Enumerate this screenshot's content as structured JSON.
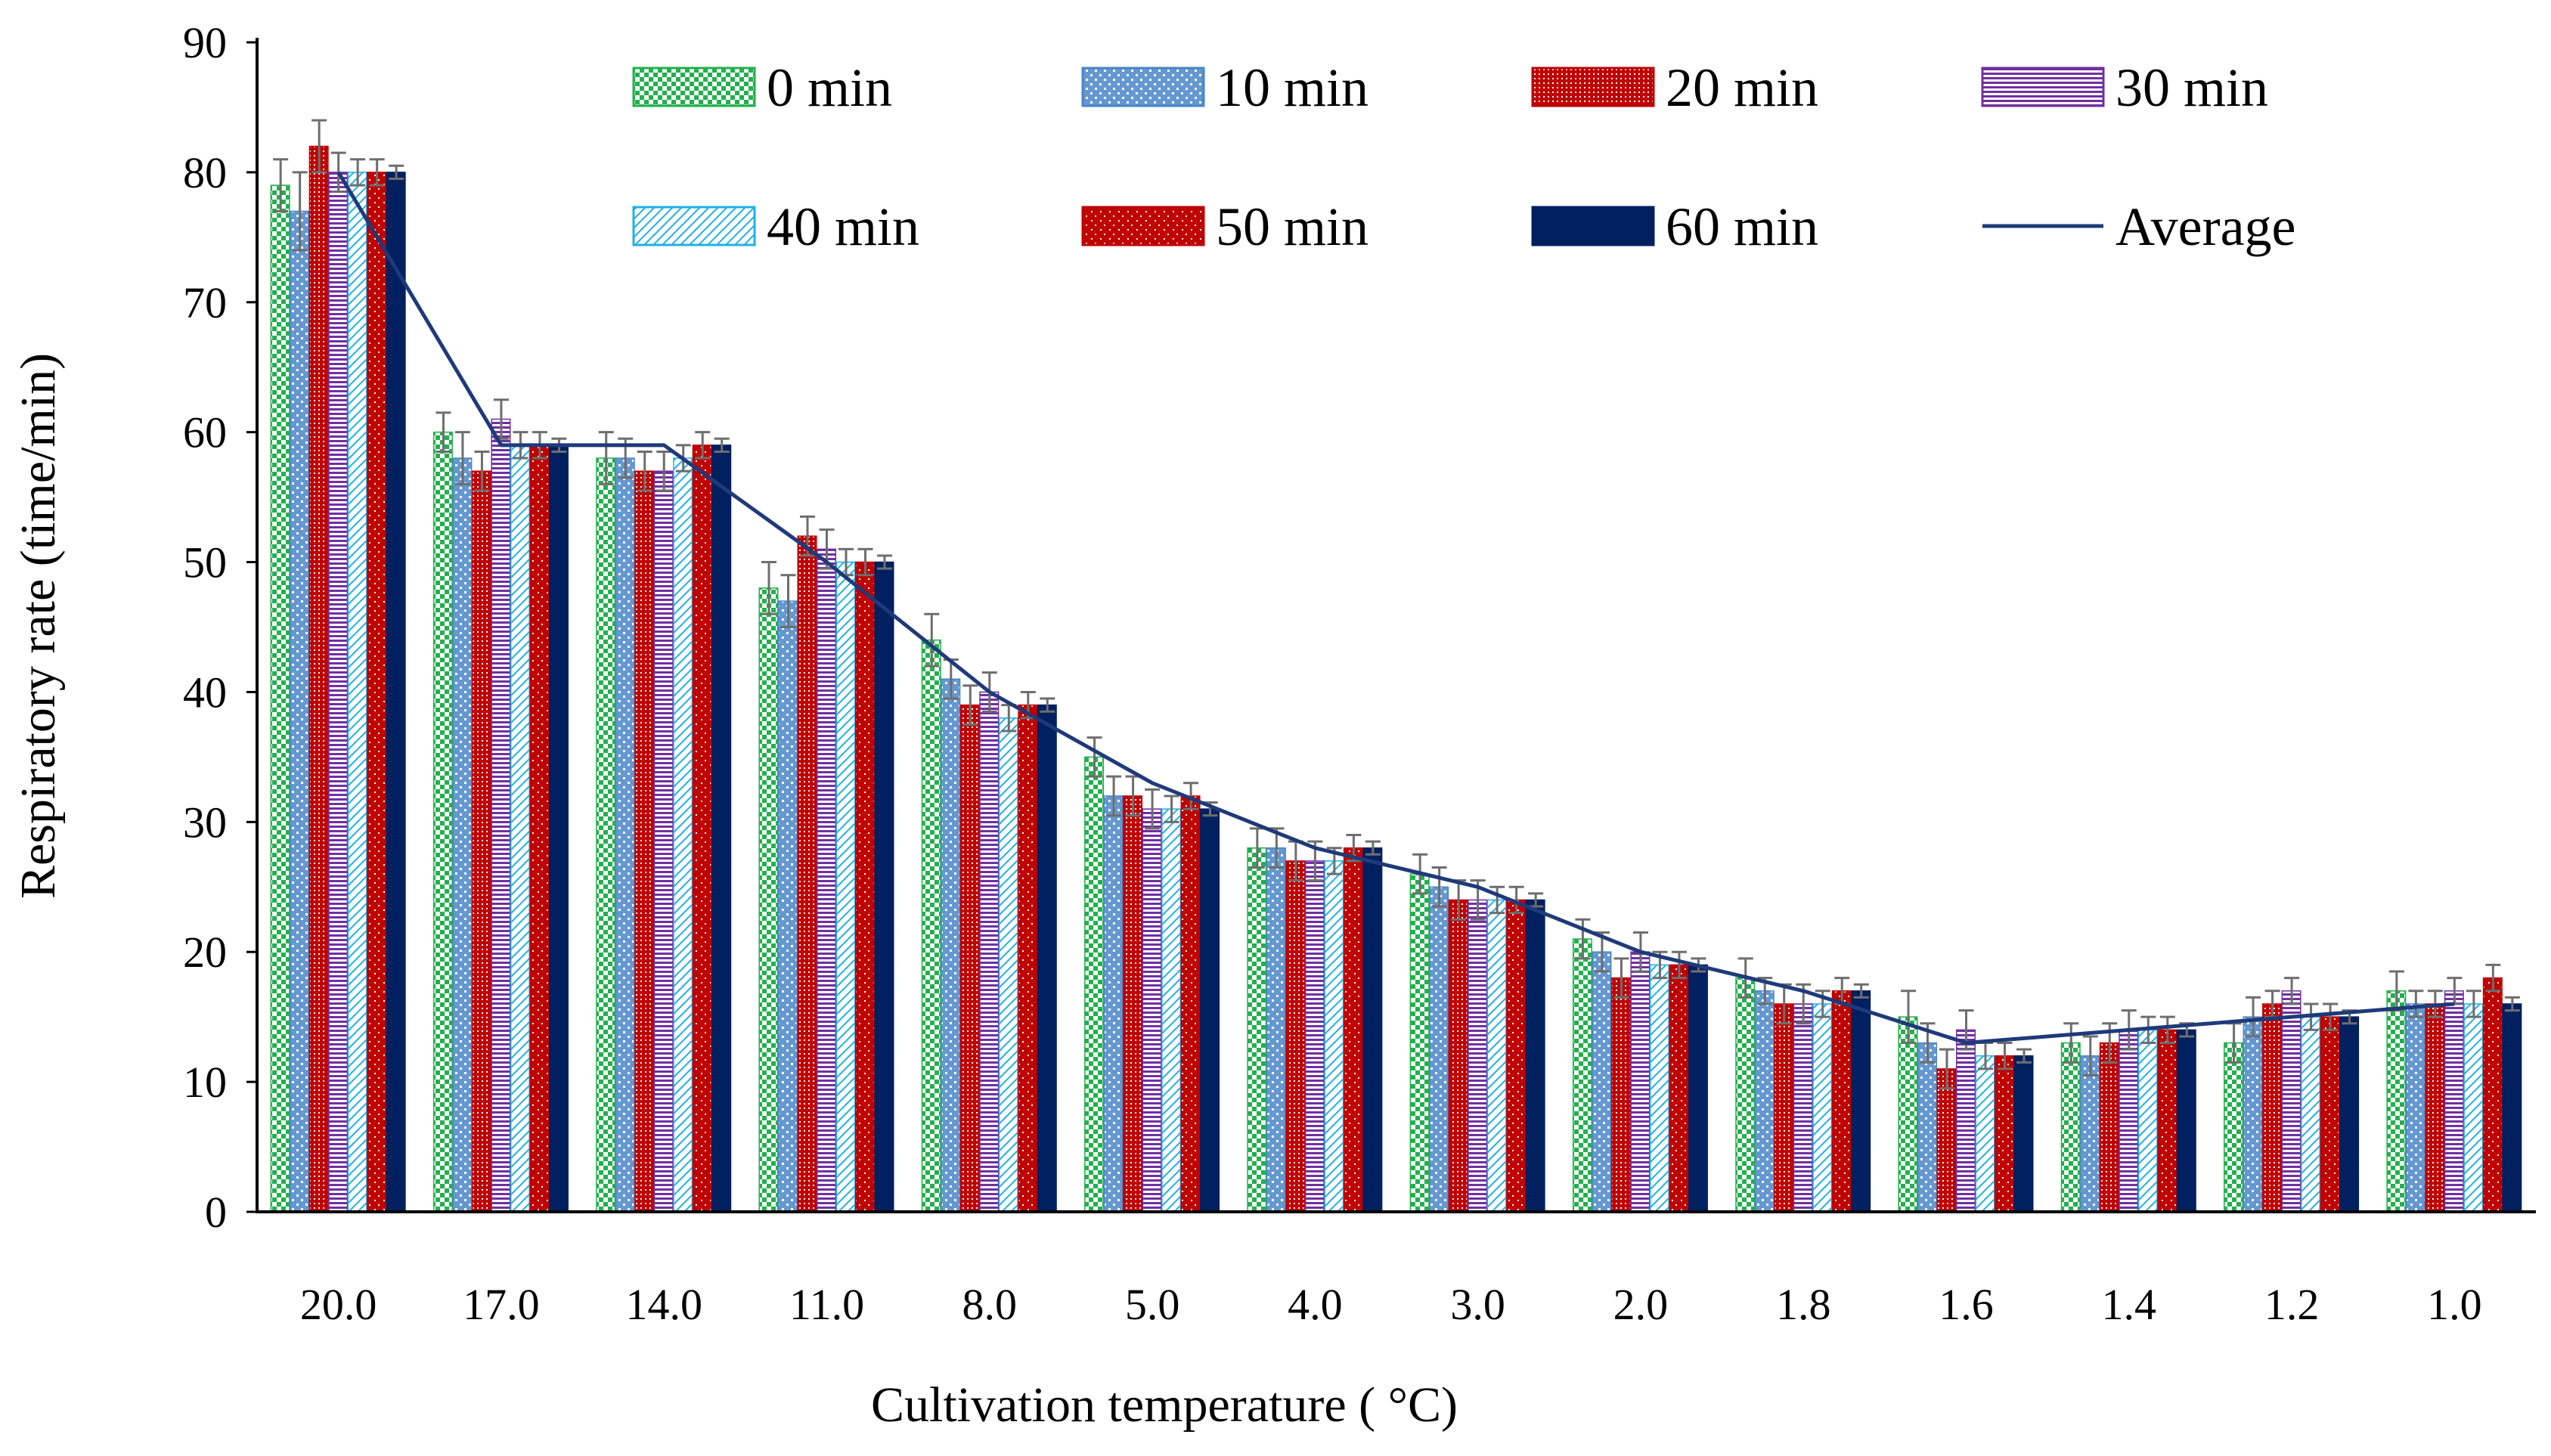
{
  "chart_data": {
    "type": "bar",
    "title": "",
    "xlabel": "Cultivation temperature ( °C)",
    "ylabel": "Respiratory rate (time/min)",
    "ylim": [
      0,
      90
    ],
    "yticks": [
      "0",
      "10",
      "20",
      "30",
      "40",
      "50",
      "60",
      "70",
      "80",
      "90"
    ],
    "categories": [
      "20.0",
      "17.0",
      "14.0",
      "11.0",
      "8.0",
      "5.0",
      "4.0",
      "3.0",
      "2.0",
      "1.8",
      "1.6",
      "1.4",
      "1.2",
      "1.0"
    ],
    "series": [
      {
        "name": "0 min",
        "color": "#22b04c",
        "pattern": "check",
        "values": [
          79,
          60,
          58,
          48,
          44,
          35,
          28,
          26,
          21,
          18,
          15,
          13,
          13,
          17
        ],
        "errors": [
          2,
          1.5,
          2,
          2,
          2,
          1.5,
          1.5,
          1.5,
          1.5,
          1.5,
          2,
          1.5,
          1.5,
          1.5
        ]
      },
      {
        "name": "10 min",
        "color": "#4a86c8",
        "pattern": "dots",
        "values": [
          77,
          58,
          58,
          47,
          41,
          32,
          28,
          25,
          20,
          17,
          13,
          12,
          15,
          16
        ],
        "errors": [
          3,
          2,
          1.5,
          2,
          1.5,
          1.5,
          1.5,
          1.5,
          1.5,
          1,
          1.5,
          1.5,
          1.5,
          1
        ]
      },
      {
        "name": "20 min",
        "color": "#c00000",
        "pattern": "dense",
        "values": [
          82,
          57,
          57,
          52,
          39,
          32,
          27,
          24,
          18,
          16,
          11,
          13,
          16,
          16
        ],
        "errors": [
          2,
          1.5,
          1.5,
          1.5,
          1.5,
          1.5,
          1.5,
          1.5,
          1.5,
          1.5,
          1.5,
          1.5,
          1,
          1
        ]
      },
      {
        "name": "30 min",
        "color": "#7030a0",
        "pattern": "hlines",
        "values": [
          80,
          61,
          57,
          51,
          40,
          31,
          27,
          24,
          20,
          16,
          14,
          14,
          17,
          17
        ],
        "errors": [
          1.5,
          1.5,
          1.5,
          1.5,
          1.5,
          1.5,
          1.5,
          1.5,
          1.5,
          1.5,
          1.5,
          1.5,
          1,
          1
        ]
      },
      {
        "name": "40 min",
        "color": "#1fb0e8",
        "pattern": "diag",
        "values": [
          80,
          59,
          58,
          50,
          38,
          31,
          27,
          24,
          19,
          16,
          12,
          14,
          15,
          16
        ],
        "errors": [
          1,
          1,
          1,
          1,
          1,
          1,
          1,
          1,
          1,
          1,
          1,
          1,
          1,
          1
        ]
      },
      {
        "name": "50 min",
        "color": "#c00000",
        "pattern": "solid-dots",
        "values": [
          80,
          59,
          59,
          50,
          39,
          32,
          28,
          24,
          19,
          17,
          12,
          14,
          15,
          18
        ],
        "errors": [
          1,
          1,
          1,
          1,
          1,
          1,
          1,
          1,
          1,
          1,
          1,
          1,
          1,
          1
        ]
      },
      {
        "name": "60 min",
        "color": "#002060",
        "pattern": "solid",
        "values": [
          80,
          59,
          59,
          50,
          39,
          31,
          28,
          24,
          19,
          17,
          12,
          14,
          15,
          16
        ],
        "errors": [
          0.5,
          0.5,
          0.5,
          0.5,
          0.5,
          0.5,
          0.5,
          0.5,
          0.5,
          0.5,
          0.5,
          0.5,
          0.5,
          0.5
        ]
      }
    ],
    "average": {
      "name": "Average",
      "color": "#1f3a7a",
      "values": [
        80,
        59,
        59,
        50,
        40,
        33,
        28,
        25,
        20,
        17,
        13,
        14,
        15,
        16
      ]
    },
    "legend_position": "top",
    "grid": false
  }
}
